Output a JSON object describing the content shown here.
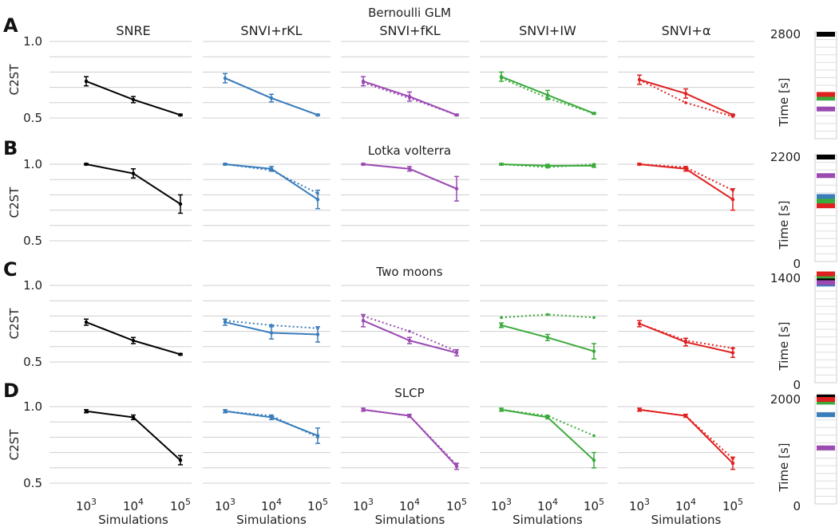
{
  "figure": {
    "method_titles": [
      "SNRE",
      "SNVI+rKL",
      "SNVI+fKL",
      "SNVI+IW",
      "SNVI+α"
    ],
    "x_ticks": [
      "3",
      "4",
      "5"
    ],
    "x_tick_base": "10",
    "x_label": "Simulations",
    "y_label": "C2ST",
    "time_label": "Time [s]"
  },
  "chart_data": [
    {
      "type": "line",
      "panel_letter": "A",
      "title": "Bernoulli GLM",
      "x": [
        1000,
        10000,
        100000
      ],
      "ylim": [
        0.5,
        1.0
      ],
      "yticks": [
        0.5,
        1.0
      ],
      "time_max": 2800,
      "time_ticks": [
        2800
      ],
      "methods": [
        {
          "name": "SNRE",
          "color": "#000000",
          "solid": [
            0.74,
            0.62,
            0.52
          ],
          "err": [
            0.03,
            0.02,
            0.005
          ],
          "dotted": null,
          "time": 2800
        },
        {
          "name": "SNVI+rKL",
          "color": "#3a7dbb",
          "solid": [
            0.76,
            0.63,
            0.52
          ],
          "err": [
            0.03,
            0.025,
            0.005
          ],
          "dotted": [
            0.76,
            0.63,
            0.52
          ],
          "time": 0
        },
        {
          "name": "SNVI+fKL",
          "color": "#9b4ab2",
          "solid": [
            0.74,
            0.64,
            0.52
          ],
          "err": [
            0.03,
            0.03,
            0.005
          ],
          "dotted": [
            0.73,
            0.63,
            0.52
          ],
          "time": 750
        },
        {
          "name": "SNVI+IW",
          "color": "#3aaa3a",
          "solid": [
            0.77,
            0.65,
            0.53
          ],
          "err": [
            0.03,
            0.03,
            0.005
          ],
          "dotted": [
            0.76,
            0.63,
            0.53
          ],
          "time": 1050
        },
        {
          "name": "SNVI+α",
          "color": "#e02020",
          "solid": [
            0.75,
            0.66,
            0.52
          ],
          "err": [
            0.03,
            0.03,
            0.005
          ],
          "dotted": [
            0.75,
            0.6,
            0.51
          ],
          "time": 1150
        }
      ]
    },
    {
      "type": "line",
      "panel_letter": "B",
      "title": "Lotka volterra",
      "x": [
        1000,
        10000,
        100000
      ],
      "ylim": [
        0.5,
        1.0
      ],
      "yticks": [
        0.5,
        1.0
      ],
      "time_max": 2200,
      "time_ticks": [
        2200,
        0
      ],
      "methods": [
        {
          "name": "SNRE",
          "color": "#000000",
          "solid": [
            1.0,
            0.94,
            0.74
          ],
          "err": [
            0.005,
            0.03,
            0.06
          ],
          "dotted": null,
          "time": 2200
        },
        {
          "name": "SNVI+rKL",
          "color": "#3a7dbb",
          "solid": [
            1.0,
            0.97,
            0.77
          ],
          "err": [
            0.005,
            0.015,
            0.06
          ],
          "dotted": [
            1.0,
            0.96,
            0.81
          ],
          "time": 1350
        },
        {
          "name": "SNVI+fKL",
          "color": "#9b4ab2",
          "solid": [
            1.0,
            0.97,
            0.84
          ],
          "err": [
            0.005,
            0.015,
            0.08
          ],
          "dotted": [
            1.0,
            0.97,
            0.84
          ],
          "time": 1800
        },
        {
          "name": "SNVI+IW",
          "color": "#3aaa3a",
          "solid": [
            1.0,
            0.99,
            0.99
          ],
          "err": [
            0.005,
            0.01,
            0.01
          ],
          "dotted": [
            1.0,
            0.98,
            1.0
          ],
          "time": 1250
        },
        {
          "name": "SNVI+α",
          "color": "#e02020",
          "solid": [
            1.0,
            0.97,
            0.77
          ],
          "err": [
            0.005,
            0.015,
            0.07
          ],
          "dotted": [
            1.0,
            0.98,
            0.83
          ],
          "time": 1150
        }
      ]
    },
    {
      "type": "line",
      "panel_letter": "C",
      "title": "Two moons",
      "x": [
        1000,
        10000,
        100000
      ],
      "ylim": [
        0.5,
        1.0
      ],
      "yticks": [
        0.5,
        1.0
      ],
      "time_max": 1400,
      "time_ticks": [
        1400,
        0
      ],
      "methods": [
        {
          "name": "SNRE",
          "color": "#000000",
          "solid": [
            0.76,
            0.64,
            0.55
          ],
          "err": [
            0.02,
            0.02,
            0.005
          ],
          "dotted": null,
          "time": 1400
        },
        {
          "name": "SNVI+rKL",
          "color": "#3a7dbb",
          "solid": [
            0.76,
            0.69,
            0.68
          ],
          "err": [
            0.02,
            0.04,
            0.05
          ],
          "dotted": [
            0.77,
            0.74,
            0.72
          ],
          "time": 1320
        },
        {
          "name": "SNVI+fKL",
          "color": "#9b4ab2",
          "solid": [
            0.77,
            0.64,
            0.56
          ],
          "err": [
            0.04,
            0.02,
            0.02
          ],
          "dotted": [
            0.8,
            0.7,
            0.57
          ],
          "time": 1340
        },
        {
          "name": "SNVI+IW",
          "color": "#3aaa3a",
          "solid": [
            0.74,
            0.66,
            0.57
          ],
          "err": [
            0.015,
            0.02,
            0.05
          ],
          "dotted": [
            0.79,
            0.81,
            0.79
          ],
          "time": 1430
        },
        {
          "name": "SNVI+α",
          "color": "#e02020",
          "solid": [
            0.75,
            0.63,
            0.56
          ],
          "err": [
            0.02,
            0.025,
            0.03
          ],
          "dotted": [
            0.75,
            0.64,
            0.59
          ],
          "time": 1460
        }
      ]
    },
    {
      "type": "line",
      "panel_letter": "D",
      "title": "SLCP",
      "x": [
        1000,
        10000,
        100000
      ],
      "ylim": [
        0.5,
        1.0
      ],
      "yticks": [
        0.5,
        1.0
      ],
      "time_max": 2000,
      "time_ticks": [
        2000,
        0
      ],
      "methods": [
        {
          "name": "SNRE",
          "color": "#000000",
          "solid": [
            0.97,
            0.93,
            0.65
          ],
          "err": [
            0.01,
            0.015,
            0.03
          ],
          "dotted": null,
          "time": 2050
        },
        {
          "name": "SNVI+rKL",
          "color": "#3a7dbb",
          "solid": [
            0.97,
            0.93,
            0.81
          ],
          "err": [
            0.01,
            0.015,
            0.05
          ],
          "dotted": [
            0.97,
            0.94,
            0.8
          ],
          "time": 1700
        },
        {
          "name": "SNVI+fKL",
          "color": "#9b4ab2",
          "solid": [
            0.98,
            0.94,
            0.61
          ],
          "err": [
            0.01,
            0.01,
            0.02
          ],
          "dotted": [
            0.98,
            0.94,
            0.62
          ],
          "time": 1050
        },
        {
          "name": "SNVI+IW",
          "color": "#3aaa3a",
          "solid": [
            0.98,
            0.93,
            0.65
          ],
          "err": [
            0.01,
            0.01,
            0.05
          ],
          "dotted": [
            0.98,
            0.94,
            0.81
          ],
          "time": 1950
        },
        {
          "name": "SNVI+α",
          "color": "#e02020",
          "solid": [
            0.98,
            0.94,
            0.63
          ],
          "err": [
            0.01,
            0.01,
            0.04
          ],
          "dotted": [
            0.98,
            0.94,
            0.66
          ],
          "time": 2000
        }
      ]
    }
  ]
}
